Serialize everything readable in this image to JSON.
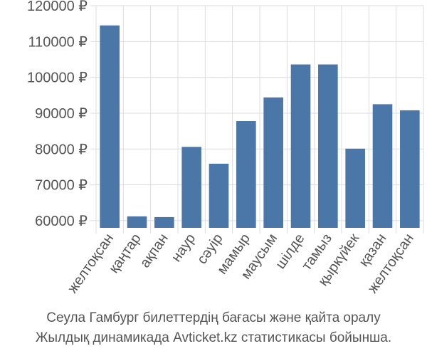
{
  "chart_data": {
    "type": "bar",
    "categories": [
      "желтоқсан",
      "қаңтар",
      "ақпан",
      "наур",
      "сәуір",
      "мамыр",
      "маусым",
      "шілде",
      "тамыз",
      "қыркүйек",
      "қазан",
      "желтоқсан"
    ],
    "values": [
      114500,
      61200,
      61000,
      80600,
      75900,
      87800,
      94400,
      103600,
      103600,
      80100,
      92500,
      90800
    ],
    "yticks": [
      60000,
      70000,
      80000,
      90000,
      100000,
      110000,
      120000
    ],
    "ytick_labels": [
      "60000 ₽",
      "70000 ₽",
      "80000 ₽",
      "90000 ₽",
      "100000 ₽",
      "110000 ₽",
      "120000 ₽"
    ],
    "ylim": [
      58000,
      120000
    ],
    "grid": true,
    "bar_color": "#4a76a8"
  },
  "caption": {
    "line1": "Сеула Гамбург билеттердің бағасы және қайта оралу",
    "line2": "Жылдық динамикада Avticket.kz статистикасы бойынша."
  }
}
